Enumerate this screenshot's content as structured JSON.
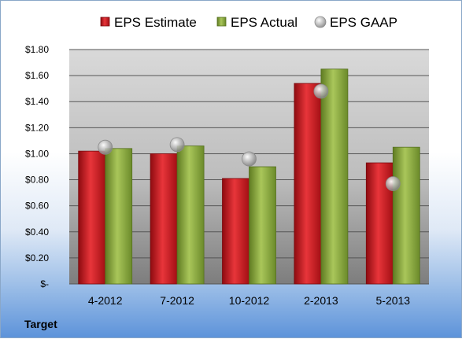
{
  "company": "Target",
  "chart_data": {
    "type": "bar",
    "categories": [
      "4-2012",
      "7-2012",
      "10-2012",
      "2-2013",
      "5-2013"
    ],
    "series": [
      {
        "name": "EPS Estimate",
        "kind": "bar",
        "color": "#c0161c",
        "values": [
          1.02,
          1.0,
          0.81,
          1.54,
          0.93
        ]
      },
      {
        "name": "EPS Actual",
        "kind": "bar",
        "color": "#8aaa3c",
        "values": [
          1.04,
          1.06,
          0.9,
          1.65,
          1.05
        ]
      },
      {
        "name": "EPS GAAP",
        "kind": "marker",
        "color": "#b0b0b0",
        "values": [
          1.05,
          1.07,
          0.96,
          1.48,
          0.77
        ]
      }
    ],
    "ylim": [
      0,
      1.8
    ],
    "ytick_values": [
      0,
      0.2,
      0.4,
      0.6,
      0.8,
      1.0,
      1.2,
      1.4,
      1.6,
      1.8
    ],
    "ytick_labels": [
      "$-",
      "$0.20",
      "$0.40",
      "$0.60",
      "$0.80",
      "$1.00",
      "$1.20",
      "$1.40",
      "$1.60",
      "$1.80"
    ],
    "grid": true,
    "legend_position": "top"
  }
}
